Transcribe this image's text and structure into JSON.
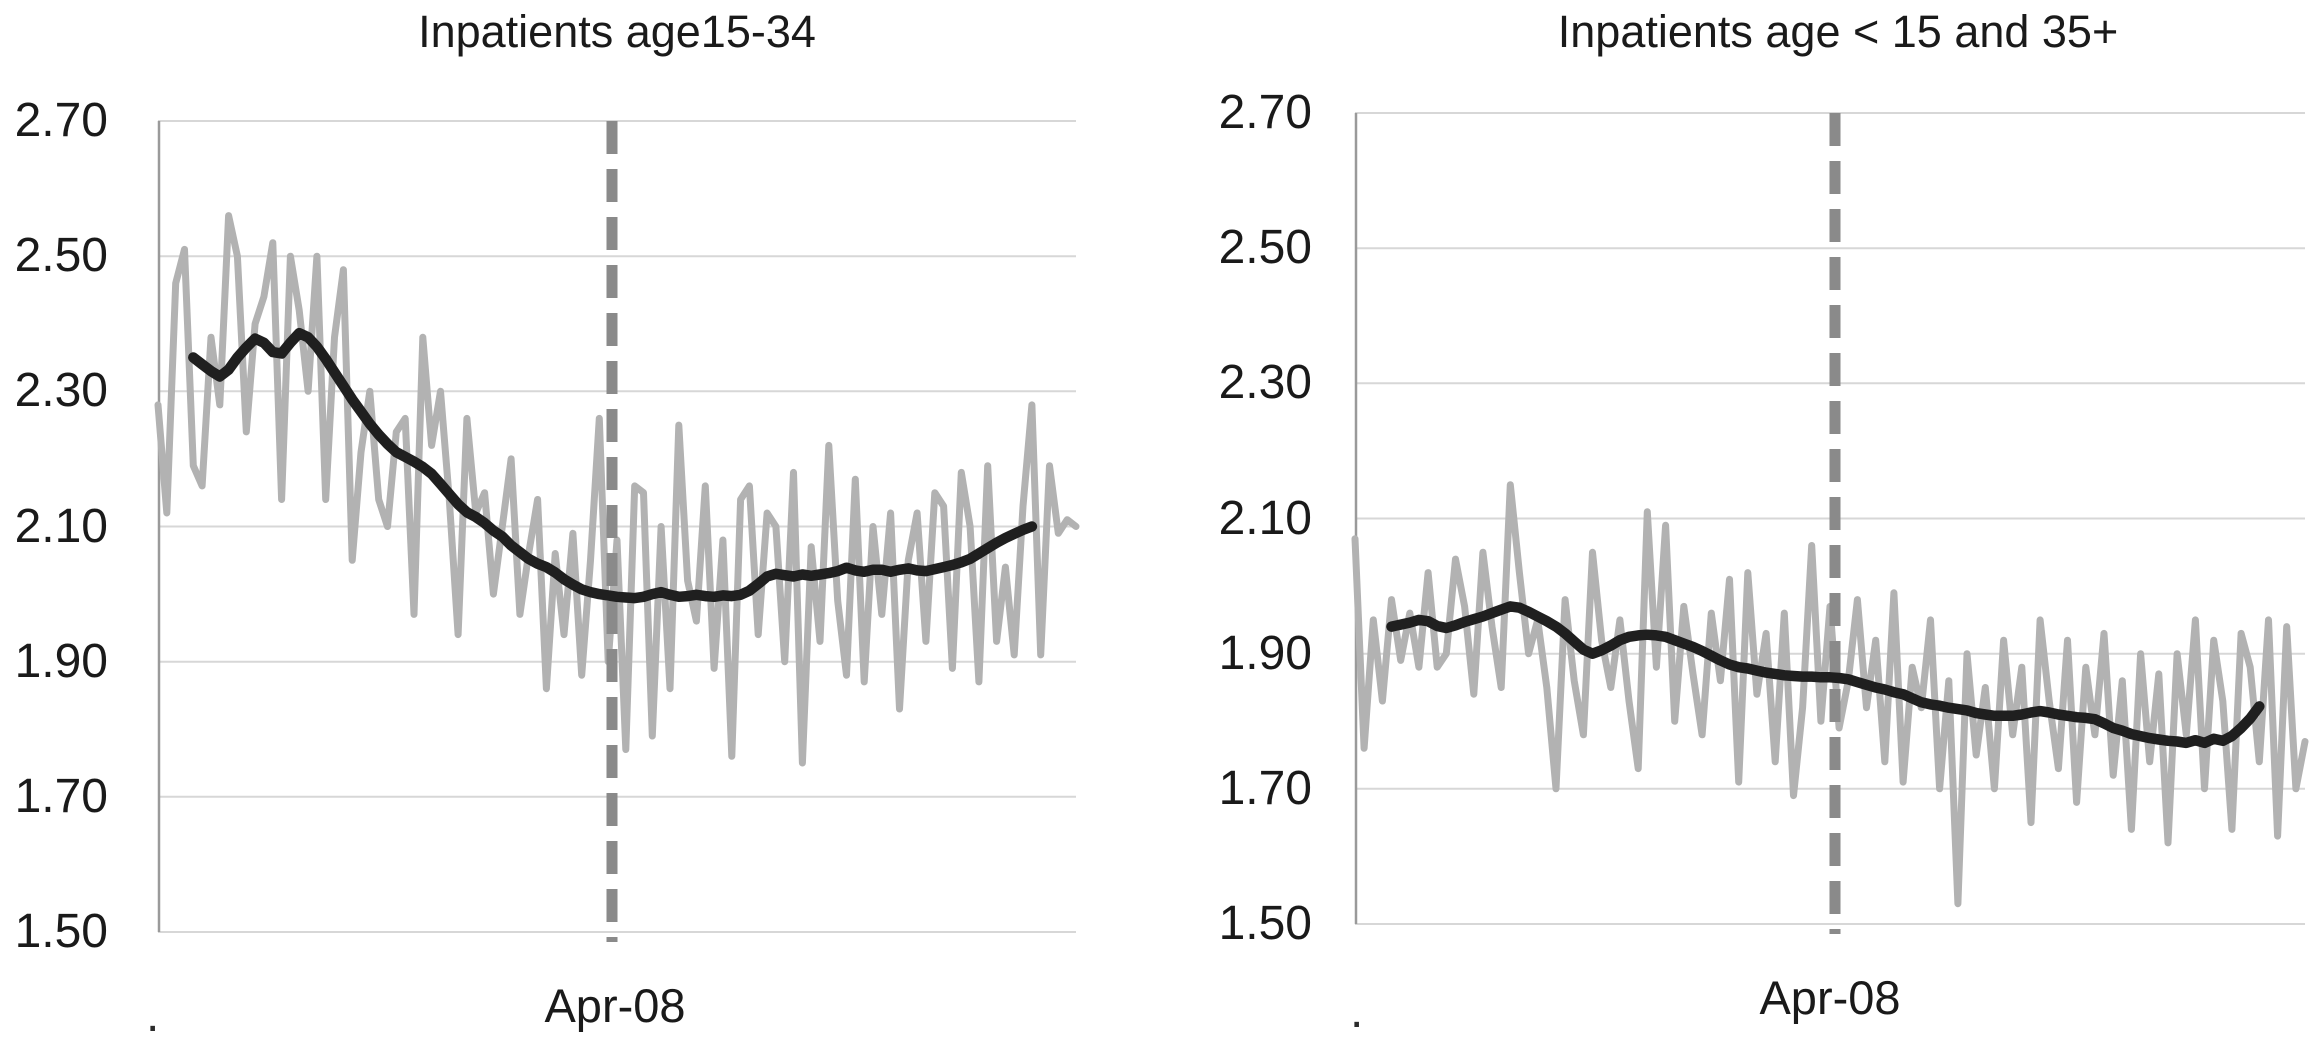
{
  "page": {
    "background": "#ffffff"
  },
  "chart_data": [
    {
      "type": "line",
      "title": "Inpatients age15-34",
      "xlabel": "",
      "ylabel": "",
      "ylim": [
        1.5,
        2.7
      ],
      "y_ticks": [
        "2.70",
        "2.50",
        "2.30",
        "2.10",
        "1.90",
        "1.70",
        "1.50"
      ],
      "y_tick_values": [
        2.7,
        2.5,
        2.3,
        2.1,
        1.9,
        1.7,
        1.5
      ],
      "grid": "horizontal",
      "legend": null,
      "x_unit": "weeks",
      "n_points": 105,
      "x_axis": {
        "tick_label": "Apr-08",
        "left_mark": "."
      },
      "intervention_line": {
        "label": "Apr-08",
        "x_frac": 0.4946,
        "style": "dashed"
      },
      "colors": {
        "grid": "#d7d7d7",
        "axis": "#9a9a9a",
        "intervention": "#8a8a8a",
        "weekly": "#b2b2b2",
        "moving_average": "#1f1f1f",
        "text": "#1a1a1a"
      },
      "series": [
        {
          "name": "weekly rate",
          "role": "raw",
          "color": "#b2b2b2",
          "width": 7,
          "values": [
            2.28,
            2.12,
            2.46,
            2.51,
            2.19,
            2.16,
            2.38,
            2.28,
            2.56,
            2.5,
            2.24,
            2.4,
            2.44,
            2.52,
            2.14,
            2.5,
            2.42,
            2.3,
            2.5,
            2.14,
            2.38,
            2.48,
            2.05,
            2.21,
            2.3,
            2.14,
            2.1,
            2.24,
            2.26,
            1.97,
            2.38,
            2.22,
            2.3,
            2.14,
            1.94,
            2.26,
            2.12,
            2.15,
            2.0,
            2.1,
            2.2,
            1.97,
            2.06,
            2.14,
            1.86,
            2.06,
            1.94,
            2.09,
            1.88,
            2.05,
            2.26,
            1.9,
            2.08,
            1.77,
            2.16,
            2.15,
            1.79,
            2.1,
            1.86,
            2.25,
            2.02,
            1.96,
            2.16,
            1.89,
            2.08,
            1.76,
            2.14,
            2.16,
            1.94,
            2.12,
            2.1,
            1.9,
            2.18,
            1.75,
            2.07,
            1.93,
            2.22,
            1.99,
            1.88,
            2.17,
            1.87,
            2.1,
            1.97,
            2.12,
            1.83,
            2.05,
            2.12,
            1.93,
            2.15,
            2.13,
            1.89,
            2.18,
            2.1,
            1.87,
            2.19,
            1.93,
            2.04,
            1.91,
            2.13,
            2.28,
            1.91,
            2.19,
            2.09,
            2.11,
            2.1
          ]
        },
        {
          "name": "moving average",
          "role": "smoothed",
          "color": "#1f1f1f",
          "width": 10.5,
          "values": [
            null,
            null,
            null,
            null,
            2.35,
            2.34,
            2.33,
            2.322,
            2.332,
            2.35,
            2.365,
            2.378,
            2.372,
            2.358,
            2.356,
            2.372,
            2.386,
            2.38,
            2.366,
            2.348,
            2.328,
            2.308,
            2.288,
            2.27,
            2.252,
            2.236,
            2.222,
            2.21,
            2.203,
            2.196,
            2.188,
            2.178,
            2.163,
            2.148,
            2.133,
            2.121,
            2.114,
            2.105,
            2.094,
            2.085,
            2.072,
            2.062,
            2.052,
            2.045,
            2.04,
            2.032,
            2.022,
            2.014,
            2.007,
            2.003,
            2.0,
            1.998,
            1.996,
            1.995,
            1.994,
            1.996,
            2.0,
            2.003,
            1.999,
            1.996,
            1.997,
            1.999,
            1.997,
            1.996,
            1.998,
            1.997,
            1.999,
            2.005,
            2.015,
            2.026,
            2.03,
            2.028,
            2.026,
            2.029,
            2.027,
            2.029,
            2.031,
            2.034,
            2.039,
            2.035,
            2.033,
            2.036,
            2.036,
            2.033,
            2.036,
            2.038,
            2.035,
            2.034,
            2.037,
            2.04,
            2.043,
            2.047,
            2.052,
            2.06,
            2.068,
            2.076,
            2.083,
            2.089,
            2.095,
            2.1,
            null,
            null,
            null,
            null,
            null
          ]
        }
      ]
    },
    {
      "type": "line",
      "title": "Inpatients age < 15 and 35+",
      "xlabel": "",
      "ylabel": "",
      "ylim": [
        1.5,
        2.7
      ],
      "y_ticks": [
        "2.70",
        "2.50",
        "2.30",
        "2.10",
        "1.90",
        "1.70",
        "1.50"
      ],
      "y_tick_values": [
        2.7,
        2.5,
        2.3,
        2.1,
        1.9,
        1.7,
        1.5
      ],
      "grid": "horizontal",
      "legend": null,
      "x_unit": "weeks",
      "n_points": 105,
      "x_axis": {
        "tick_label": "Apr-08",
        "left_mark": "."
      },
      "intervention_line": {
        "label": "Apr-08",
        "x_frac": 0.5053,
        "style": "dashed"
      },
      "colors": {
        "grid": "#d7d7d7",
        "axis": "#9a9a9a",
        "intervention": "#8a8a8a",
        "weekly": "#b2b2b2",
        "moving_average": "#1f1f1f",
        "text": "#1a1a1a"
      },
      "series": [
        {
          "name": "weekly rate",
          "role": "raw",
          "color": "#b2b2b2",
          "width": 7,
          "values": [
            2.07,
            1.76,
            1.95,
            1.83,
            1.98,
            1.89,
            1.96,
            1.88,
            2.02,
            1.88,
            1.9,
            2.04,
            1.97,
            1.84,
            2.05,
            1.94,
            1.85,
            2.15,
            2.02,
            1.9,
            1.95,
            1.85,
            1.7,
            1.98,
            1.86,
            1.78,
            2.05,
            1.92,
            1.85,
            1.95,
            1.83,
            1.73,
            2.11,
            1.88,
            2.09,
            1.8,
            1.97,
            1.87,
            1.78,
            1.96,
            1.86,
            2.01,
            1.71,
            2.02,
            1.84,
            1.93,
            1.74,
            1.96,
            1.69,
            1.82,
            2.06,
            1.8,
            1.97,
            1.79,
            1.86,
            1.98,
            1.82,
            1.92,
            1.74,
            1.99,
            1.71,
            1.88,
            1.82,
            1.95,
            1.7,
            1.86,
            1.53,
            1.9,
            1.75,
            1.85,
            1.7,
            1.92,
            1.78,
            1.88,
            1.65,
            1.95,
            1.83,
            1.73,
            1.92,
            1.68,
            1.88,
            1.78,
            1.93,
            1.72,
            1.86,
            1.64,
            1.9,
            1.74,
            1.87,
            1.62,
            1.9,
            1.78,
            1.95,
            1.7,
            1.92,
            1.83,
            1.64,
            1.93,
            1.88,
            1.74,
            1.95,
            1.63,
            1.94,
            1.7,
            1.77
          ]
        },
        {
          "name": "moving average",
          "role": "smoothed",
          "color": "#1f1f1f",
          "width": 10.5,
          "values": [
            null,
            null,
            null,
            null,
            1.94,
            1.943,
            1.946,
            1.95,
            1.948,
            1.941,
            1.938,
            1.942,
            1.947,
            1.951,
            1.955,
            1.96,
            1.965,
            1.97,
            1.968,
            1.962,
            1.955,
            1.948,
            1.94,
            1.93,
            1.918,
            1.906,
            1.9,
            1.905,
            1.912,
            1.92,
            1.925,
            1.927,
            1.928,
            1.927,
            1.925,
            1.92,
            1.915,
            1.91,
            1.904,
            1.897,
            1.89,
            1.884,
            1.88,
            1.878,
            1.875,
            1.872,
            1.87,
            1.868,
            1.867,
            1.866,
            1.866,
            1.865,
            1.865,
            1.864,
            1.862,
            1.858,
            1.854,
            1.85,
            1.847,
            1.843,
            1.84,
            1.834,
            1.828,
            1.825,
            1.823,
            1.82,
            1.818,
            1.816,
            1.812,
            1.81,
            1.808,
            1.808,
            1.808,
            1.81,
            1.813,
            1.815,
            1.813,
            1.81,
            1.808,
            1.806,
            1.805,
            1.803,
            1.797,
            1.79,
            1.786,
            1.781,
            1.778,
            1.775,
            1.773,
            1.771,
            1.77,
            1.768,
            1.772,
            1.768,
            1.774,
            1.771,
            1.778,
            1.79,
            1.804,
            1.822,
            null,
            null,
            null,
            null,
            null
          ]
        }
      ]
    }
  ]
}
